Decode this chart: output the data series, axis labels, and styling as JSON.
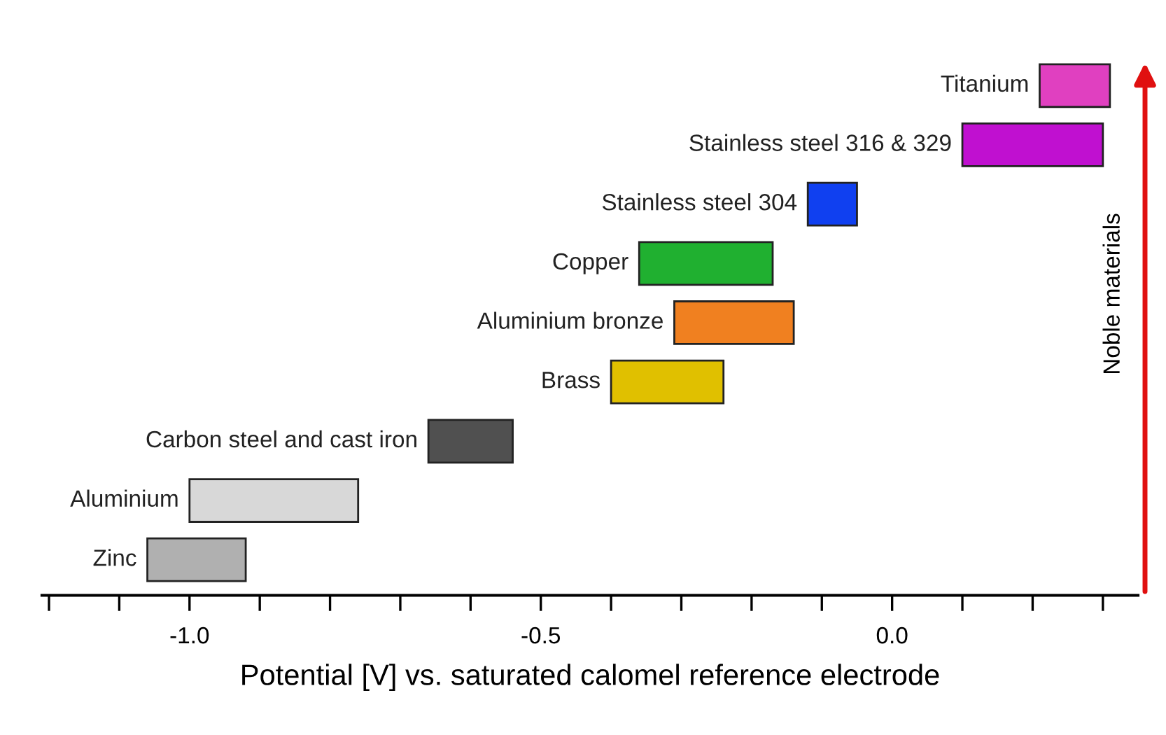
{
  "chart_data": {
    "type": "bar",
    "orientation": "horizontal",
    "xlabel": "Potential [V] vs. saturated calomel reference electrode",
    "categories": [
      "Titanium",
      "Stainless steel 316 & 329",
      "Stainless steel 304",
      "Copper",
      "Aluminium bronze",
      "Brass",
      "Carbon steel and cast iron",
      "Aluminium",
      "Zinc"
    ],
    "base": [
      0.21,
      0.1,
      -0.12,
      -0.36,
      -0.31,
      -0.4,
      -0.66,
      -1.0,
      -1.06
    ],
    "values": [
      0.1,
      0.2,
      0.07,
      0.19,
      0.17,
      0.16,
      0.12,
      0.24,
      0.14
    ],
    "colors": [
      "#e040c0",
      "#c010d0",
      "#1040f0",
      "#20b030",
      "#f08020",
      "#e0c000",
      "#505050",
      "#d8d8d8",
      "#b0b0b0"
    ],
    "xlim": [
      -1.21,
      0.35
    ],
    "xticks": [
      {
        "value": -1.2,
        "label": null
      },
      {
        "value": -1.1,
        "label": null
      },
      {
        "value": -1.0,
        "label": "-1.0"
      },
      {
        "value": -0.9,
        "label": null
      },
      {
        "value": -0.8,
        "label": null
      },
      {
        "value": -0.7,
        "label": null
      },
      {
        "value": -0.6,
        "label": null
      },
      {
        "value": -0.5,
        "label": "-0.5"
      },
      {
        "value": -0.4,
        "label": null
      },
      {
        "value": -0.3,
        "label": null
      },
      {
        "value": -0.2,
        "label": null
      },
      {
        "value": -0.1,
        "label": null
      },
      {
        "value": 0.0,
        "label": "0.0"
      },
      {
        "value": 0.1,
        "label": null
      },
      {
        "value": 0.2,
        "label": null
      },
      {
        "value": 0.3,
        "label": null
      }
    ],
    "annotations": [
      "Noble materials"
    ],
    "grid": false,
    "legend": false
  }
}
